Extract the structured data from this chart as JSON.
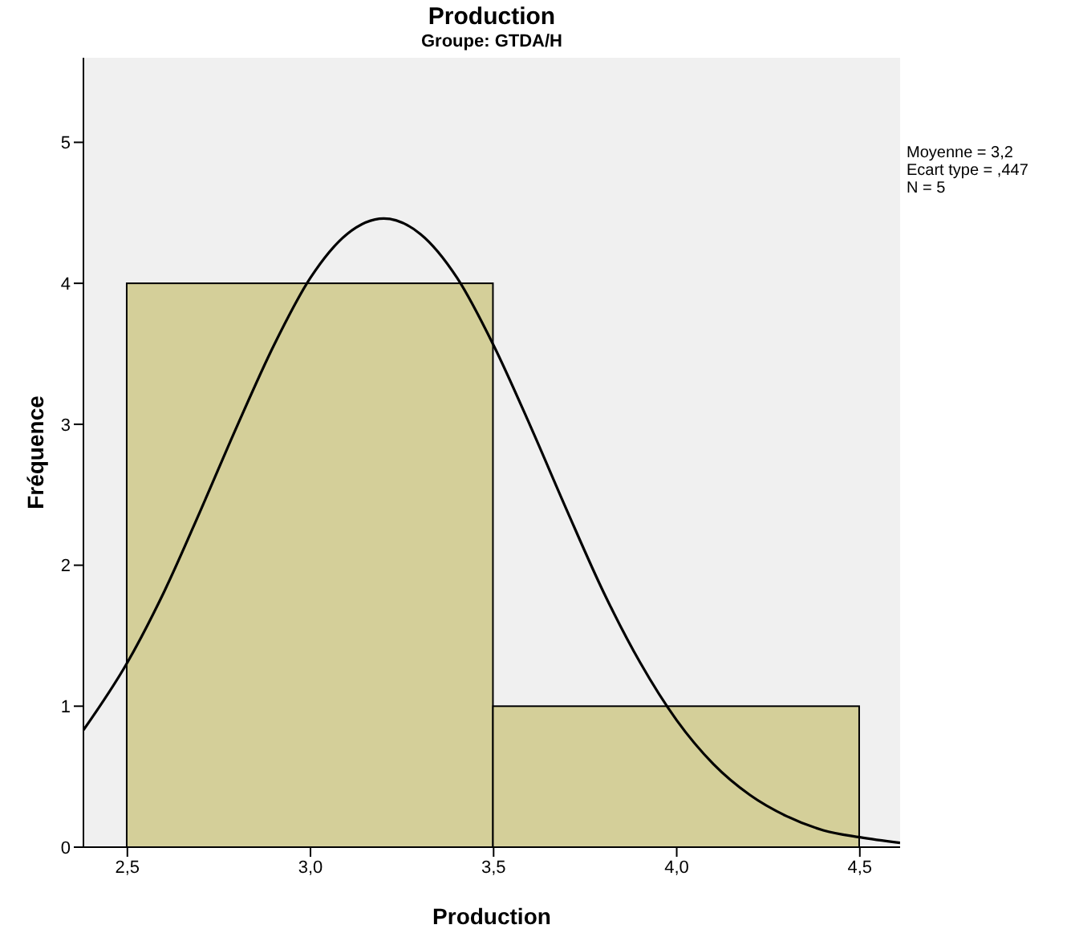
{
  "chart_data": {
    "type": "histogram",
    "title": "Production",
    "subtitle": "Groupe: GTDA/H",
    "xlabel": "Production",
    "ylabel": "Fréquence",
    "bins": [
      2.5,
      3.5,
      4.5
    ],
    "values": [
      4,
      1
    ],
    "color": "#d4cf99",
    "series": [
      {
        "type": "line",
        "color": "#000000",
        "x": [
          2.38,
          2.5,
          2.6,
          2.7,
          2.8,
          2.9,
          3.0,
          3.1,
          3.2,
          3.3,
          3.4,
          3.5,
          3.6,
          3.7,
          3.8,
          3.9,
          4.0,
          4.1,
          4.2,
          4.3,
          4.4,
          4.5,
          4.61
        ],
        "values": [
          0.83,
          1.31,
          1.81,
          2.39,
          2.99,
          3.56,
          4.04,
          4.35,
          4.46,
          4.35,
          4.04,
          3.56,
          2.99,
          2.39,
          1.81,
          1.31,
          0.9,
          0.59,
          0.37,
          0.22,
          0.12,
          0.07,
          0.03
        ]
      }
    ],
    "xlim": [
      2.38,
      4.61
    ],
    "xticks": [
      {
        "value": 2.5,
        "label": "2,5"
      },
      {
        "value": 3.0,
        "label": "3,0"
      },
      {
        "value": 3.5,
        "label": "3,5"
      },
      {
        "value": 4.0,
        "label": "4,0"
      },
      {
        "value": 4.5,
        "label": "4,5"
      }
    ],
    "ylim": [
      0,
      5.6
    ],
    "yticks": [
      0,
      1,
      2,
      3,
      4,
      5
    ],
    "annotations": [
      "Moyenne = 3,2",
      "Ecart type = ,447",
      "N = 5"
    ],
    "grid": false,
    "legend": false,
    "marker": "none",
    "line_style": "solid"
  }
}
